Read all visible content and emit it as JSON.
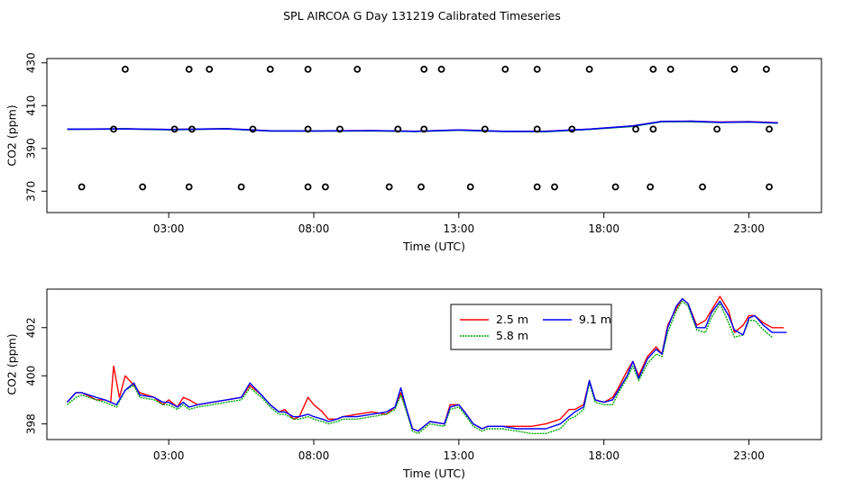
{
  "title": "SPL AIRCOA G  Day 131219  Calibrated Timeseries",
  "chart_data": [
    {
      "type": "scatter",
      "id": "top",
      "xlabel": "Time (UTC)",
      "ylabel": "CO2 (ppm)",
      "xlim": [
        -1.2,
        25.5
      ],
      "ylim": [
        360,
        432
      ],
      "xticks": [
        3,
        8,
        13,
        18,
        23
      ],
      "xticklabels": [
        "03:00",
        "08:00",
        "13:00",
        "18:00",
        "23:00"
      ],
      "yticks": [
        370,
        390,
        410,
        430
      ],
      "yticklabels": [
        "370",
        "390",
        "410",
        "430"
      ],
      "calibration_points": [
        {
          "x": 1.5,
          "y": 427
        },
        {
          "x": 3.7,
          "y": 427
        },
        {
          "x": 4.4,
          "y": 427
        },
        {
          "x": 6.5,
          "y": 427
        },
        {
          "x": 7.8,
          "y": 427
        },
        {
          "x": 9.5,
          "y": 427
        },
        {
          "x": 11.8,
          "y": 427
        },
        {
          "x": 12.4,
          "y": 427
        },
        {
          "x": 14.6,
          "y": 427
        },
        {
          "x": 15.7,
          "y": 427
        },
        {
          "x": 17.5,
          "y": 427
        },
        {
          "x": 19.7,
          "y": 427
        },
        {
          "x": 20.3,
          "y": 427
        },
        {
          "x": 22.5,
          "y": 427
        },
        {
          "x": 23.6,
          "y": 427
        },
        {
          "x": 1.1,
          "y": 399
        },
        {
          "x": 3.2,
          "y": 399
        },
        {
          "x": 3.8,
          "y": 399
        },
        {
          "x": 5.9,
          "y": 399
        },
        {
          "x": 7.8,
          "y": 399
        },
        {
          "x": 8.9,
          "y": 399
        },
        {
          "x": 10.9,
          "y": 399
        },
        {
          "x": 11.8,
          "y": 399
        },
        {
          "x": 13.9,
          "y": 399
        },
        {
          "x": 15.7,
          "y": 399
        },
        {
          "x": 16.9,
          "y": 399
        },
        {
          "x": 19.1,
          "y": 399
        },
        {
          "x": 19.7,
          "y": 399
        },
        {
          "x": 21.9,
          "y": 399
        },
        {
          "x": 23.7,
          "y": 399
        },
        {
          "x": 0.0,
          "y": 372
        },
        {
          "x": 2.1,
          "y": 372
        },
        {
          "x": 3.7,
          "y": 372
        },
        {
          "x": 5.5,
          "y": 372
        },
        {
          "x": 7.8,
          "y": 372
        },
        {
          "x": 8.4,
          "y": 372
        },
        {
          "x": 10.6,
          "y": 372
        },
        {
          "x": 11.7,
          "y": 372
        },
        {
          "x": 13.4,
          "y": 372
        },
        {
          "x": 15.7,
          "y": 372
        },
        {
          "x": 16.3,
          "y": 372
        },
        {
          "x": 18.4,
          "y": 372
        },
        {
          "x": 19.6,
          "y": 372
        },
        {
          "x": 21.4,
          "y": 372
        },
        {
          "x": 23.7,
          "y": 372
        }
      ],
      "series": [
        {
          "name": "2.5 m",
          "color": "#ff0000",
          "x": [
            -0.5,
            1.5,
            3.0,
            5.0,
            6.5,
            8.0,
            10.0,
            11.5,
            13.0,
            14.5,
            16.0,
            17.5,
            19.0,
            20.0,
            21.0,
            22.0,
            23.0,
            24.0
          ],
          "y": [
            399.0,
            399.1,
            398.8,
            399.2,
            398.2,
            398.2,
            398.3,
            398.0,
            398.6,
            398.0,
            398.0,
            399.0,
            400.5,
            402.6,
            402.7,
            402.3,
            402.5,
            402.0
          ]
        },
        {
          "name": "5.8 m",
          "color": "#00aa00",
          "x": [
            -0.5,
            1.5,
            3.0,
            5.0,
            6.5,
            8.0,
            10.0,
            11.5,
            13.0,
            14.5,
            16.0,
            17.5,
            19.0,
            20.0,
            21.0,
            22.0,
            23.0,
            24.0
          ],
          "y": [
            399.0,
            399.1,
            398.7,
            399.1,
            398.1,
            398.1,
            398.2,
            397.9,
            398.5,
            397.9,
            397.8,
            398.9,
            400.3,
            402.5,
            402.5,
            402.1,
            402.3,
            401.8
          ]
        },
        {
          "name": "9.1 m",
          "color": "#0000ff",
          "x": [
            -0.5,
            1.5,
            3.0,
            5.0,
            6.5,
            8.0,
            10.0,
            11.5,
            13.0,
            14.5,
            16.0,
            17.5,
            19.0,
            20.0,
            21.0,
            22.0,
            23.0,
            24.0
          ],
          "y": [
            399.0,
            399.1,
            398.8,
            399.2,
            398.2,
            398.1,
            398.3,
            398.0,
            398.6,
            398.0,
            398.0,
            399.0,
            400.5,
            402.6,
            402.7,
            402.2,
            402.4,
            401.9
          ]
        }
      ]
    },
    {
      "type": "line",
      "id": "bottom",
      "xlabel": "Time (UTC)",
      "ylabel": "CO2 (ppm)",
      "xlim": [
        -1.2,
        25.5
      ],
      "ylim": [
        397.35,
        403.6
      ],
      "xticks": [
        3,
        8,
        13,
        18,
        23
      ],
      "xticklabels": [
        "03:00",
        "08:00",
        "13:00",
        "18:00",
        "23:00"
      ],
      "yticks": [
        398,
        400,
        402
      ],
      "yticklabels": [
        "398",
        "400",
        "402"
      ],
      "legend": {
        "position": "top-right",
        "entries": [
          "2.5 m",
          "5.8 m",
          "9.1 m"
        ]
      },
      "series": [
        {
          "name": "2.5 m",
          "color": "#ff0000",
          "x": [
            -0.5,
            -0.2,
            0.0,
            0.5,
            0.8,
            1.0,
            1.1,
            1.3,
            1.5,
            1.8,
            2.0,
            2.5,
            2.8,
            3.0,
            3.3,
            3.5,
            3.7,
            4.0,
            4.5,
            5.0,
            5.5,
            5.8,
            6.2,
            6.5,
            6.8,
            7.0,
            7.3,
            7.5,
            7.8,
            8.0,
            8.3,
            8.5,
            8.8,
            9.0,
            9.5,
            10.0,
            10.5,
            10.8,
            11.0,
            11.2,
            11.4,
            11.6,
            11.8,
            12.0,
            12.5,
            12.7,
            13.0,
            13.2,
            13.5,
            13.8,
            14.0,
            14.5,
            15.0,
            15.5,
            16.0,
            16.5,
            16.8,
            17.0,
            17.3,
            17.5,
            17.7,
            18.0,
            18.3,
            18.5,
            18.8,
            19.0,
            19.2,
            19.5,
            19.8,
            20.0,
            20.2,
            20.5,
            20.7,
            20.9,
            21.2,
            21.5,
            21.7,
            22.0,
            22.3,
            22.5,
            22.8,
            23.0,
            23.2,
            23.5,
            23.8,
            24.2
          ],
          "y": [
            398.9,
            399.3,
            399.3,
            399.0,
            399.0,
            398.9,
            400.4,
            399.1,
            400.0,
            399.6,
            399.3,
            399.1,
            398.8,
            399.0,
            398.7,
            399.1,
            399.0,
            398.8,
            398.9,
            399.0,
            399.1,
            399.6,
            399.2,
            398.8,
            398.5,
            398.6,
            398.2,
            398.3,
            399.1,
            398.8,
            398.5,
            398.2,
            398.2,
            398.3,
            398.4,
            398.5,
            398.4,
            398.7,
            399.3,
            398.6,
            397.8,
            397.7,
            397.9,
            398.1,
            398.0,
            398.8,
            398.8,
            398.5,
            398.0,
            397.8,
            397.9,
            397.9,
            397.9,
            397.9,
            398.0,
            398.2,
            398.6,
            398.6,
            398.8,
            399.8,
            399.0,
            398.9,
            399.1,
            399.5,
            400.2,
            400.6,
            400.0,
            400.8,
            401.2,
            400.9,
            402.1,
            402.8,
            403.2,
            403.0,
            402.1,
            402.3,
            402.7,
            403.3,
            402.7,
            401.8,
            402.1,
            402.5,
            402.5,
            402.2,
            402.0,
            402.0
          ]
        },
        {
          "name": "5.8 m",
          "color": "#00aa00",
          "x": [
            -0.5,
            -0.2,
            0.0,
            0.5,
            0.8,
            1.0,
            1.2,
            1.5,
            1.8,
            2.0,
            2.5,
            2.8,
            3.0,
            3.3,
            3.5,
            3.7,
            4.0,
            4.5,
            5.0,
            5.5,
            5.8,
            6.2,
            6.5,
            6.8,
            7.0,
            7.3,
            7.5,
            7.8,
            8.0,
            8.3,
            8.5,
            8.8,
            9.0,
            9.5,
            10.0,
            10.5,
            10.8,
            11.0,
            11.2,
            11.4,
            11.6,
            11.8,
            12.0,
            12.5,
            12.7,
            13.0,
            13.2,
            13.5,
            13.8,
            14.0,
            14.5,
            15.0,
            15.5,
            16.0,
            16.5,
            16.8,
            17.0,
            17.3,
            17.5,
            17.7,
            18.0,
            18.3,
            18.5,
            18.8,
            19.0,
            19.2,
            19.5,
            19.8,
            20.0,
            20.2,
            20.5,
            20.7,
            20.9,
            21.2,
            21.5,
            21.7,
            22.0,
            22.3,
            22.5,
            22.8,
            23.0,
            23.2,
            23.5,
            23.8
          ],
          "y": [
            398.8,
            399.1,
            399.2,
            399.0,
            398.9,
            398.8,
            398.7,
            399.4,
            399.6,
            399.1,
            399.0,
            398.8,
            398.8,
            398.6,
            398.8,
            398.6,
            398.7,
            398.8,
            398.9,
            399.0,
            399.5,
            399.1,
            398.7,
            398.4,
            398.4,
            398.2,
            398.2,
            398.3,
            398.2,
            398.1,
            398.0,
            398.1,
            398.2,
            398.2,
            398.3,
            398.4,
            398.6,
            399.2,
            398.5,
            397.7,
            397.6,
            397.8,
            398.0,
            397.9,
            398.6,
            398.7,
            398.4,
            397.9,
            397.7,
            397.8,
            397.8,
            397.7,
            397.6,
            397.6,
            397.8,
            398.2,
            398.3,
            398.6,
            399.7,
            398.9,
            398.8,
            398.8,
            399.3,
            399.9,
            400.4,
            399.8,
            400.5,
            400.9,
            400.8,
            401.8,
            402.7,
            403.1,
            402.9,
            401.9,
            401.8,
            402.4,
            403.0,
            402.2,
            401.6,
            401.7,
            402.3,
            402.3,
            401.9,
            401.6
          ]
        },
        {
          "name": "9.1 m",
          "color": "#0000ff",
          "x": [
            -0.5,
            -0.2,
            0.0,
            0.5,
            0.8,
            1.0,
            1.2,
            1.5,
            1.8,
            2.0,
            2.5,
            2.8,
            3.0,
            3.3,
            3.5,
            3.7,
            4.0,
            4.5,
            5.0,
            5.5,
            5.8,
            6.2,
            6.5,
            6.8,
            7.0,
            7.3,
            7.5,
            7.8,
            8.0,
            8.3,
            8.5,
            8.8,
            9.0,
            9.5,
            10.0,
            10.5,
            10.8,
            11.0,
            11.2,
            11.4,
            11.6,
            11.8,
            12.0,
            12.5,
            12.7,
            13.0,
            13.2,
            13.5,
            13.8,
            14.0,
            14.5,
            15.0,
            15.5,
            16.0,
            16.5,
            16.8,
            17.0,
            17.3,
            17.5,
            17.7,
            18.0,
            18.3,
            18.5,
            18.8,
            19.0,
            19.2,
            19.5,
            19.8,
            20.0,
            20.2,
            20.5,
            20.7,
            20.9,
            21.2,
            21.5,
            21.7,
            22.0,
            22.3,
            22.5,
            22.8,
            23.0,
            23.2,
            23.5,
            23.8,
            24.3
          ],
          "y": [
            398.9,
            399.3,
            399.3,
            399.1,
            399.0,
            398.9,
            398.8,
            399.4,
            399.7,
            399.2,
            399.1,
            398.9,
            398.9,
            398.7,
            398.9,
            398.7,
            398.8,
            398.9,
            399.0,
            399.1,
            399.7,
            399.2,
            398.8,
            398.5,
            398.5,
            398.3,
            398.3,
            398.4,
            398.3,
            398.2,
            398.1,
            398.2,
            398.3,
            398.3,
            398.4,
            398.5,
            398.7,
            399.5,
            398.6,
            397.8,
            397.7,
            397.9,
            398.1,
            398.0,
            398.7,
            398.8,
            398.5,
            398.0,
            397.8,
            397.9,
            397.9,
            397.8,
            397.8,
            397.8,
            398.0,
            398.3,
            398.5,
            398.7,
            399.8,
            399.0,
            398.9,
            399.0,
            399.4,
            400.0,
            400.6,
            399.9,
            400.7,
            401.1,
            400.9,
            402.0,
            402.9,
            403.2,
            403.0,
            402.0,
            402.0,
            402.6,
            403.1,
            402.5,
            401.9,
            401.7,
            402.4,
            402.5,
            402.1,
            401.8,
            401.8
          ]
        }
      ]
    }
  ]
}
